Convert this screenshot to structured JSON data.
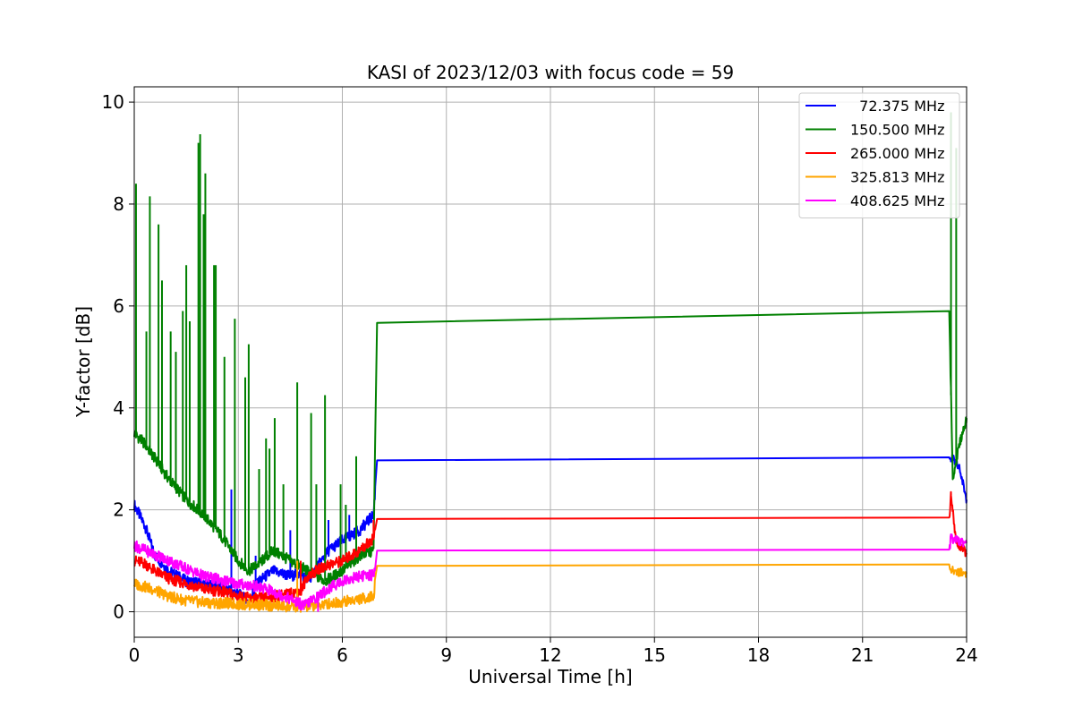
{
  "chart_data": {
    "type": "line",
    "title": "KASI of 2023/12/03 with focus code = 59",
    "xlabel": "Universal Time [h]",
    "ylabel": "Y-factor [dB]",
    "xlim": [
      0,
      24
    ],
    "ylim": [
      -0.5,
      10.3
    ],
    "xticks": [
      0,
      3,
      6,
      9,
      12,
      15,
      18,
      21,
      24
    ],
    "yticks": [
      0,
      2,
      4,
      6,
      8,
      10
    ],
    "grid": true,
    "legend_position": "top-right",
    "series": [
      {
        "name": "  72.375 MHz",
        "color": "#0000ff",
        "x": [
          0,
          0.3,
          0.6,
          1,
          1.5,
          2,
          2.5,
          3,
          3.3,
          3.6,
          4,
          4.5,
          4.8,
          5,
          5.3,
          5.6,
          6,
          6.5,
          6.9,
          7.0,
          23.5,
          23.6,
          23.8,
          24
        ],
        "y": [
          2.1,
          1.7,
          1.1,
          0.8,
          0.6,
          0.55,
          0.5,
          0.35,
          0.2,
          0.6,
          0.8,
          0.7,
          0.75,
          0.6,
          0.9,
          1.2,
          1.4,
          1.6,
          1.9,
          2.97,
          3.03,
          3.0,
          2.8,
          2.2
        ],
        "spikes": [
          [
            2.8,
            2.4
          ],
          [
            3.5,
            1.1
          ],
          [
            4.5,
            1.6
          ],
          [
            5.6,
            1.8
          ],
          [
            6.2,
            1.9
          ]
        ]
      },
      {
        "name": "150.500 MHz",
        "color": "#008000",
        "x": [
          0,
          0.3,
          0.6,
          1,
          1.5,
          2,
          2.5,
          3,
          3.3,
          3.6,
          4,
          4.5,
          5,
          5.5,
          6,
          6.5,
          6.9,
          7.0,
          23.5,
          23.6,
          23.8,
          24
        ],
        "y": [
          3.5,
          3.3,
          3.0,
          2.6,
          2.2,
          1.9,
          1.5,
          1.0,
          0.8,
          0.95,
          1.2,
          1.0,
          0.8,
          0.6,
          0.8,
          1.1,
          1.2,
          5.67,
          5.9,
          2.6,
          3.3,
          3.8
        ],
        "spikes": [
          [
            0.05,
            8.4
          ],
          [
            0.35,
            5.5
          ],
          [
            0.45,
            8.15
          ],
          [
            0.7,
            7.6
          ],
          [
            0.8,
            6.5
          ],
          [
            1.05,
            5.5
          ],
          [
            1.2,
            5.1
          ],
          [
            1.4,
            5.9
          ],
          [
            1.5,
            6.8
          ],
          [
            1.6,
            5.7
          ],
          [
            1.85,
            9.2
          ],
          [
            1.9,
            9.37
          ],
          [
            2.0,
            7.8
          ],
          [
            2.05,
            8.6
          ],
          [
            2.3,
            6.8
          ],
          [
            2.35,
            6.8
          ],
          [
            2.6,
            5.0
          ],
          [
            2.9,
            5.75
          ],
          [
            3.2,
            4.6
          ],
          [
            3.3,
            5.25
          ],
          [
            3.6,
            2.8
          ],
          [
            3.8,
            3.4
          ],
          [
            3.9,
            3.2
          ],
          [
            4.05,
            3.8
          ],
          [
            4.3,
            2.5
          ],
          [
            4.7,
            4.5
          ],
          [
            5.1,
            3.9
          ],
          [
            5.25,
            2.5
          ],
          [
            5.5,
            4.25
          ],
          [
            5.95,
            2.5
          ],
          [
            6.1,
            2.1
          ],
          [
            6.4,
            3.05
          ],
          [
            23.55,
            9.8
          ],
          [
            23.7,
            9.1
          ]
        ]
      },
      {
        "name": "265.000 MHz",
        "color": "#ff0000",
        "x": [
          0,
          0.3,
          0.6,
          1,
          1.5,
          2,
          2.5,
          3,
          3.5,
          4,
          4.5,
          4.8,
          5,
          5.5,
          6,
          6.5,
          6.9,
          7.0,
          23.5,
          23.55,
          23.7,
          24
        ],
        "y": [
          1.0,
          0.95,
          0.8,
          0.65,
          0.55,
          0.45,
          0.4,
          0.3,
          0.25,
          0.3,
          0.35,
          0.4,
          0.7,
          0.9,
          1.0,
          1.2,
          1.45,
          1.82,
          1.85,
          2.28,
          1.35,
          1.15
        ],
        "spikes": [
          [
            4.8,
            1.0
          ],
          [
            6.9,
            1.8
          ]
        ]
      },
      {
        "name": "325.813 MHz",
        "color": "#ffa500",
        "x": [
          0,
          0.5,
          1,
          1.5,
          2,
          2.5,
          3,
          3.5,
          4,
          4.5,
          5,
          5.5,
          6,
          6.5,
          6.9,
          7.0,
          23.5,
          23.55,
          23.7,
          24
        ],
        "y": [
          0.55,
          0.45,
          0.3,
          0.22,
          0.18,
          0.17,
          0.15,
          0.14,
          0.12,
          0.1,
          0.1,
          0.15,
          0.2,
          0.25,
          0.3,
          0.9,
          0.93,
          0.8,
          0.8,
          0.75
        ],
        "spikes": [
          [
            4.7,
            1.0
          ]
        ]
      },
      {
        "name": "408.625 MHz",
        "color": "#ff00ff",
        "x": [
          0,
          0.5,
          1,
          1.5,
          2,
          2.5,
          3,
          3.5,
          4,
          4.5,
          4.9,
          5.3,
          5.7,
          6,
          6.5,
          6.9,
          7.0,
          23.5,
          23.55,
          23.7,
          24
        ],
        "y": [
          1.3,
          1.15,
          1.0,
          0.85,
          0.7,
          0.62,
          0.55,
          0.5,
          0.4,
          0.25,
          0.12,
          0.3,
          0.5,
          0.6,
          0.7,
          0.72,
          1.2,
          1.22,
          1.45,
          1.4,
          1.35
        ],
        "spikes": [
          [
            5.3,
            0.0
          ]
        ]
      }
    ]
  }
}
